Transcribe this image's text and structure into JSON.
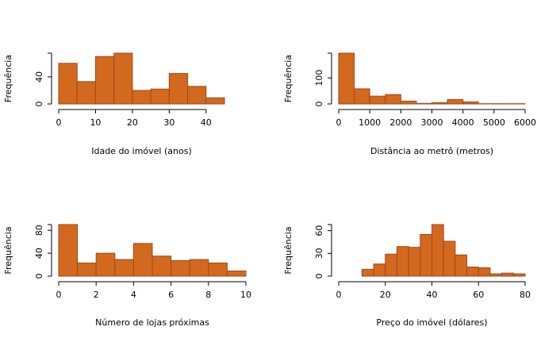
{
  "colors": {
    "bar_fill": "#d2691e",
    "bar_border": "#a0481c",
    "axis": "#000000",
    "background": "#ffffff"
  },
  "chart_data": [
    {
      "type": "bar",
      "subtype": "histogram",
      "xlabel": "Idade do imóvel (anos)",
      "ylabel": "Frequência",
      "bin_edges": [
        0,
        5,
        10,
        15,
        20,
        25,
        30,
        35,
        40,
        45
      ],
      "values": [
        60,
        33,
        70,
        75,
        20,
        22,
        45,
        26,
        9
      ],
      "xlim": [
        0,
        45
      ],
      "ylim": [
        0,
        75
      ],
      "xticks": [
        0,
        10,
        20,
        30,
        40
      ],
      "yticks": [
        0,
        40
      ],
      "grid": false
    },
    {
      "type": "bar",
      "subtype": "histogram",
      "xlabel": "Distância ao metrô (metros)",
      "ylabel": "Frequência",
      "bin_edges": [
        0,
        500,
        1000,
        1500,
        2000,
        2500,
        3000,
        3500,
        4000,
        4500,
        5000,
        5500,
        6000
      ],
      "values": [
        195,
        58,
        30,
        36,
        11,
        2,
        5,
        17,
        8,
        1,
        1,
        1
      ],
      "xlim": [
        0,
        6000
      ],
      "ylim": [
        0,
        195
      ],
      "xticks": [
        0,
        1000,
        2000,
        3000,
        4000,
        5000,
        6000
      ],
      "yticks": [
        0,
        100
      ],
      "grid": false
    },
    {
      "type": "bar",
      "subtype": "histogram",
      "xlabel": "Número de lojas próximas",
      "ylabel": "Frequência",
      "bin_edges": [
        0,
        1,
        2,
        3,
        4,
        5,
        6,
        7,
        8,
        9,
        10
      ],
      "values": [
        90,
        23,
        40,
        29,
        57,
        35,
        27,
        29,
        23,
        9
      ],
      "xlim": [
        0,
        10
      ],
      "ylim": [
        0,
        90
      ],
      "xticks": [
        0,
        2,
        4,
        6,
        8,
        10
      ],
      "yticks": [
        0,
        40,
        80
      ],
      "grid": false
    },
    {
      "type": "bar",
      "subtype": "histogram",
      "xlabel": "Preço do imóvel (dólares)",
      "ylabel": "Frequência",
      "bin_edges": [
        0,
        5,
        10,
        15,
        20,
        25,
        30,
        35,
        40,
        45,
        50,
        55,
        60,
        65,
        70,
        75,
        80
      ],
      "values": [
        0,
        0,
        9,
        16,
        29,
        39,
        38,
        55,
        68,
        46,
        28,
        12,
        11,
        3,
        4,
        3
      ],
      "xlim": [
        0,
        80
      ],
      "ylim": [
        0,
        68
      ],
      "xticks": [
        0,
        20,
        40,
        60,
        80
      ],
      "yticks": [
        0,
        30,
        60
      ],
      "grid": false
    }
  ]
}
